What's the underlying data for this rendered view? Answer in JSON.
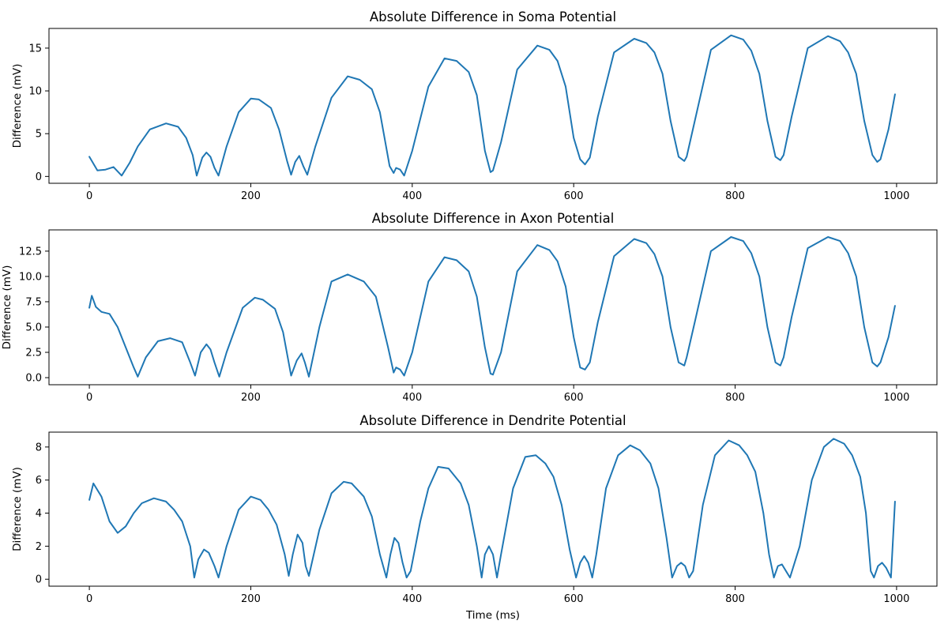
{
  "chart_data": [
    {
      "type": "line",
      "title": "Absolute Difference in Soma Potential",
      "xlabel": "",
      "ylabel": "Difference (mV)",
      "xlim": [
        -50,
        1050
      ],
      "ylim": [
        -0.8,
        17.3
      ],
      "xticks": [
        0,
        200,
        400,
        600,
        800,
        1000
      ],
      "xtick_labels": [
        "0",
        "200",
        "400",
        "600",
        "800",
        "1000"
      ],
      "yticks": [
        0,
        5,
        10,
        15
      ],
      "ytick_labels": [
        "0",
        "5",
        "10",
        "15"
      ],
      "grid": false,
      "color": "#1f77b4",
      "series": [
        {
          "x": [
            0,
            10,
            20,
            30,
            40,
            50,
            60,
            75,
            95,
            110,
            120,
            128,
            133,
            140,
            145,
            150,
            155,
            160,
            170,
            185,
            200,
            210,
            225,
            235,
            245,
            250,
            255,
            260,
            265,
            270,
            280,
            300,
            320,
            335,
            350,
            360,
            372,
            377,
            380,
            385,
            390,
            400,
            420,
            440,
            455,
            470,
            480,
            490,
            497,
            500,
            510,
            530,
            555,
            570,
            580,
            590,
            600,
            608,
            614,
            620,
            630,
            650,
            675,
            690,
            700,
            710,
            720,
            730,
            737,
            740,
            750,
            770,
            795,
            810,
            820,
            830,
            840,
            850,
            856,
            860,
            870,
            890,
            915,
            930,
            940,
            950,
            960,
            970,
            976,
            980,
            990,
            998
          ],
          "y": [
            2.3,
            0.7,
            0.8,
            1.1,
            0.1,
            1.6,
            3.5,
            5.5,
            6.2,
            5.8,
            4.5,
            2.5,
            0.1,
            2.2,
            2.8,
            2.3,
            1.0,
            0.1,
            3.5,
            7.5,
            9.1,
            9.0,
            8.0,
            5.5,
            1.8,
            0.2,
            1.7,
            2.4,
            1.2,
            0.2,
            3.5,
            9.2,
            11.7,
            11.3,
            10.2,
            7.5,
            1.2,
            0.4,
            1.0,
            0.8,
            0.1,
            3.0,
            10.5,
            13.8,
            13.5,
            12.2,
            9.5,
            3.0,
            0.5,
            0.7,
            4.0,
            12.5,
            15.3,
            14.8,
            13.5,
            10.5,
            4.5,
            2.0,
            1.4,
            2.2,
            7.0,
            14.5,
            16.1,
            15.6,
            14.5,
            12.0,
            6.5,
            2.3,
            1.8,
            2.3,
            6.5,
            14.8,
            16.5,
            16.0,
            14.7,
            12.0,
            6.5,
            2.3,
            1.9,
            2.5,
            7.0,
            15.0,
            16.4,
            15.8,
            14.5,
            12.0,
            6.5,
            2.5,
            1.7,
            2.0,
            5.5,
            9.6
          ]
        }
      ]
    },
    {
      "type": "line",
      "title": "Absolute Difference in Axon Potential",
      "xlabel": "",
      "ylabel": "Difference (mV)",
      "xlim": [
        -50,
        1050
      ],
      "ylim": [
        -0.7,
        14.6
      ],
      "xticks": [
        0,
        200,
        400,
        600,
        800,
        1000
      ],
      "xtick_labels": [
        "0",
        "200",
        "400",
        "600",
        "800",
        "1000"
      ],
      "yticks": [
        0,
        2.5,
        5,
        7.5,
        10,
        12.5
      ],
      "ytick_labels": [
        "0.0",
        "2.5",
        "5.0",
        "7.5",
        "10.0",
        "12.5"
      ],
      "grid": false,
      "color": "#1f77b4",
      "series": [
        {
          "x": [
            0,
            3,
            8,
            15,
            25,
            35,
            45,
            55,
            60,
            70,
            85,
            100,
            115,
            125,
            131,
            138,
            145,
            150,
            155,
            161,
            170,
            190,
            205,
            215,
            230,
            240,
            250,
            257,
            263,
            267,
            272,
            285,
            300,
            320,
            340,
            355,
            370,
            377,
            380,
            385,
            390,
            400,
            420,
            440,
            455,
            470,
            480,
            490,
            497,
            500,
            510,
            530,
            555,
            570,
            580,
            590,
            600,
            608,
            614,
            620,
            630,
            650,
            675,
            690,
            700,
            710,
            720,
            730,
            737,
            740,
            750,
            770,
            795,
            810,
            820,
            830,
            840,
            850,
            856,
            860,
            870,
            890,
            915,
            930,
            940,
            950,
            960,
            970,
            976,
            980,
            990,
            998
          ],
          "y": [
            6.9,
            8.1,
            7.0,
            6.5,
            6.3,
            5.0,
            3.0,
            1.0,
            0.1,
            2.0,
            3.6,
            3.9,
            3.5,
            1.5,
            0.2,
            2.5,
            3.3,
            2.8,
            1.5,
            0.1,
            2.5,
            6.9,
            7.9,
            7.7,
            6.8,
            4.5,
            0.2,
            1.7,
            2.4,
            1.5,
            0.1,
            5.0,
            9.5,
            10.2,
            9.5,
            8.0,
            3.0,
            0.5,
            1.0,
            0.8,
            0.2,
            2.5,
            9.5,
            11.9,
            11.6,
            10.5,
            8.0,
            3.0,
            0.4,
            0.3,
            2.5,
            10.5,
            13.1,
            12.6,
            11.5,
            9.0,
            4.0,
            1.0,
            0.8,
            1.5,
            5.5,
            12.0,
            13.7,
            13.3,
            12.2,
            10.0,
            5.0,
            1.5,
            1.2,
            2.0,
            5.5,
            12.5,
            13.9,
            13.5,
            12.3,
            10.0,
            5.0,
            1.5,
            1.2,
            2.0,
            6.0,
            12.8,
            13.9,
            13.5,
            12.3,
            10.0,
            5.0,
            1.5,
            1.1,
            1.5,
            4.0,
            7.1
          ]
        }
      ]
    },
    {
      "type": "line",
      "title": "Absolute Difference in Dendrite Potential",
      "xlabel": "Time (ms)",
      "ylabel": "Difference (mV)",
      "xlim": [
        -50,
        1050
      ],
      "ylim": [
        -0.42,
        8.9
      ],
      "xticks": [
        0,
        200,
        400,
        600,
        800,
        1000
      ],
      "xtick_labels": [
        "0",
        "200",
        "400",
        "600",
        "800",
        "1000"
      ],
      "yticks": [
        0,
        2,
        4,
        6,
        8
      ],
      "ytick_labels": [
        "0",
        "2",
        "4",
        "6",
        "8"
      ],
      "grid": false,
      "color": "#1f77b4",
      "series": [
        {
          "x": [
            0,
            5,
            15,
            25,
            35,
            45,
            55,
            65,
            80,
            95,
            105,
            115,
            125,
            130,
            135,
            142,
            148,
            155,
            160,
            170,
            185,
            200,
            212,
            222,
            232,
            242,
            247,
            252,
            258,
            264,
            268,
            272,
            285,
            300,
            315,
            325,
            340,
            350,
            360,
            368,
            373,
            378,
            383,
            388,
            393,
            398,
            410,
            420,
            432,
            445,
            460,
            470,
            480,
            486,
            490,
            495,
            500,
            505,
            510,
            525,
            540,
            553,
            565,
            575,
            585,
            595,
            603,
            608,
            613,
            618,
            623,
            628,
            640,
            655,
            670,
            682,
            695,
            705,
            715,
            722,
            728,
            733,
            738,
            743,
            748,
            760,
            775,
            792,
            805,
            815,
            825,
            835,
            842,
            848,
            853,
            858,
            863,
            868,
            880,
            895,
            910,
            922,
            935,
            945,
            955,
            962,
            968,
            972,
            977,
            982,
            987,
            993,
            998
          ],
          "y": [
            4.8,
            5.8,
            5.0,
            3.5,
            2.8,
            3.2,
            4.0,
            4.6,
            4.9,
            4.7,
            4.2,
            3.5,
            2.0,
            0.1,
            1.2,
            1.8,
            1.6,
            0.8,
            0.1,
            2.0,
            4.2,
            5.0,
            4.8,
            4.2,
            3.3,
            1.5,
            0.2,
            1.5,
            2.7,
            2.2,
            0.8,
            0.2,
            3.0,
            5.2,
            5.9,
            5.8,
            5.0,
            3.8,
            1.5,
            0.1,
            1.5,
            2.5,
            2.2,
            1.0,
            0.1,
            0.5,
            3.5,
            5.5,
            6.8,
            6.7,
            5.8,
            4.5,
            2.0,
            0.1,
            1.5,
            2.0,
            1.5,
            0.1,
            1.5,
            5.5,
            7.4,
            7.5,
            7.0,
            6.2,
            4.5,
            1.8,
            0.1,
            1.0,
            1.4,
            1.0,
            0.1,
            1.5,
            5.5,
            7.5,
            8.1,
            7.8,
            7.0,
            5.5,
            2.5,
            0.1,
            0.8,
            1.0,
            0.8,
            0.1,
            0.5,
            4.5,
            7.5,
            8.4,
            8.1,
            7.5,
            6.5,
            4.0,
            1.5,
            0.1,
            0.8,
            0.9,
            0.5,
            0.1,
            2.0,
            6.0,
            8.0,
            8.5,
            8.2,
            7.5,
            6.2,
            4.0,
            0.5,
            0.1,
            0.8,
            1.0,
            0.7,
            0.1,
            4.7
          ]
        }
      ]
    }
  ]
}
